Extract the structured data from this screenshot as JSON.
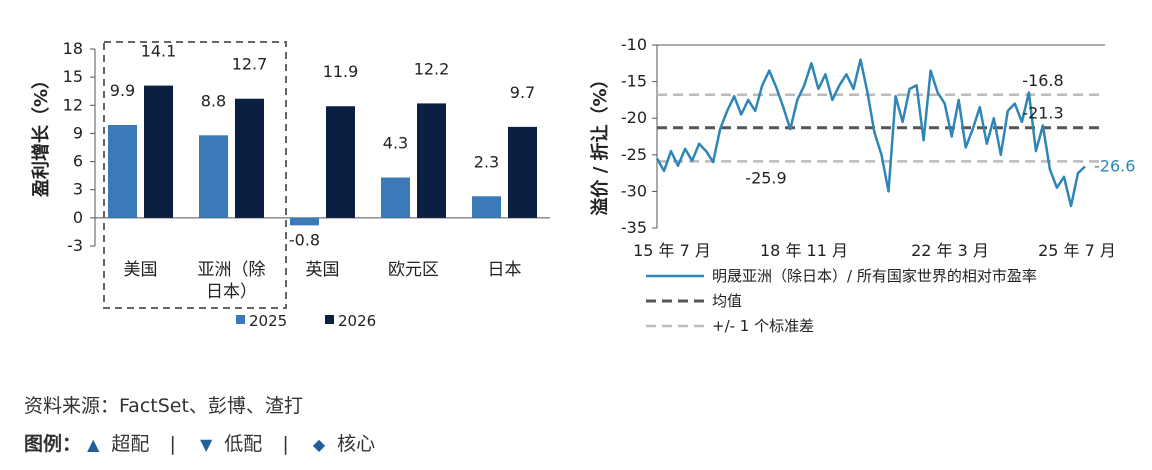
{
  "chart_data": [
    {
      "type": "bar",
      "ylabel": "盈利增长（%）",
      "ylim": [
        -3,
        18
      ],
      "yticks": [
        -3,
        0,
        3,
        6,
        9,
        12,
        15,
        18
      ],
      "categories": [
        "美国",
        "亚洲（除日本）",
        "英国",
        "欧元区",
        "日本"
      ],
      "category_lines": [
        [
          "美国"
        ],
        [
          "亚洲（除",
          "日本）"
        ],
        [
          "英国"
        ],
        [
          "欧元区"
        ],
        [
          "日本"
        ]
      ],
      "series": [
        {
          "name": "2025",
          "color": "#3a7ab8",
          "values": [
            9.9,
            8.8,
            -0.8,
            4.3,
            2.3
          ]
        },
        {
          "name": "2026",
          "color": "#0b1f42",
          "values": [
            14.1,
            12.7,
            11.9,
            12.2,
            9.7
          ]
        }
      ],
      "highlight_box": [
        "美国",
        "亚洲（除日本）"
      ],
      "legend_placement": "bottom"
    },
    {
      "type": "line",
      "ylabel": "溢价 / 折让（%）",
      "ylim": [
        -35,
        -10
      ],
      "yticks": [
        -10,
        -15,
        -20,
        -25,
        -30,
        -35
      ],
      "xticks": [
        "15 年 7 月",
        "18 年 11 月",
        "22 年 3 月",
        "25 年 7 月"
      ],
      "x_range": [
        "2015-07",
        "2025-09"
      ],
      "series": [
        {
          "name": "明晟亚洲（除日本）/ 所有国家世界的相对市盈率",
          "color": "#2e86b8",
          "x": [
            "2015-07",
            "2015-09",
            "2015-11",
            "2016-01",
            "2016-03",
            "2016-05",
            "2016-07",
            "2016-09",
            "2016-11",
            "2017-01",
            "2017-03",
            "2017-05",
            "2017-07",
            "2017-09",
            "2017-11",
            "2018-01",
            "2018-03",
            "2018-05",
            "2018-07",
            "2018-09",
            "2018-11",
            "2019-01",
            "2019-03",
            "2019-05",
            "2019-07",
            "2019-09",
            "2019-11",
            "2020-01",
            "2020-03",
            "2020-05",
            "2020-07",
            "2020-09",
            "2020-11",
            "2021-01",
            "2021-03",
            "2021-05",
            "2021-07",
            "2021-09",
            "2021-11",
            "2022-01",
            "2022-03",
            "2022-05",
            "2022-07",
            "2022-09",
            "2022-11",
            "2023-01",
            "2023-03",
            "2023-05",
            "2023-07",
            "2023-09",
            "2023-11",
            "2024-01",
            "2024-03",
            "2024-05",
            "2024-07",
            "2024-09",
            "2024-11",
            "2025-01",
            "2025-03",
            "2025-05",
            "2025-07",
            "2025-09"
          ],
          "values": [
            -25.5,
            -27.2,
            -24.5,
            -26.5,
            -24.2,
            -25.8,
            -23.5,
            -24.5,
            -26,
            -21.5,
            -19,
            -17,
            -19.5,
            -17.5,
            -19,
            -15.5,
            -13.5,
            -15.8,
            -18.5,
            -21.5,
            -17.5,
            -15.5,
            -12.5,
            -16,
            -14,
            -17.5,
            -15.5,
            -14,
            -16,
            -12,
            -16.5,
            -22,
            -25,
            -30,
            -17,
            -20.5,
            -16,
            -15.5,
            -23,
            -13.5,
            -16.5,
            -18,
            -22.5,
            -17.5,
            -24,
            -21.5,
            -18.5,
            -23.5,
            -20,
            -25,
            -19,
            -18,
            -20.5,
            -16.5,
            -24.5,
            -21,
            -27,
            -29.5,
            -28,
            -32,
            -27.5,
            -26.6
          ]
        }
      ],
      "reference_lines": [
        {
          "name": "均值",
          "value": -21.3,
          "style": "dashed",
          "color": "#555555"
        },
        {
          "name": "+/- 1 个标准差",
          "value": -16.8,
          "style": "dashed",
          "color": "#bbbbbb"
        },
        {
          "name": "+/- 1 个标准差",
          "value": -25.9,
          "style": "dashed",
          "color": "#bbbbbb"
        }
      ],
      "annotations": [
        "-16.8",
        "-21.3",
        "-25.9",
        "-26.6"
      ],
      "grid": false,
      "legend_placement": "bottom"
    }
  ],
  "footer": {
    "source": "资料来源：FactSet、彭博、渣打",
    "legend_title": "图例：",
    "overweight_symbol": "▲",
    "overweight": "超配",
    "underweight_symbol": "▼",
    "underweight": "低配",
    "core_symbol": "◆",
    "core": "核心",
    "separator": "|"
  }
}
